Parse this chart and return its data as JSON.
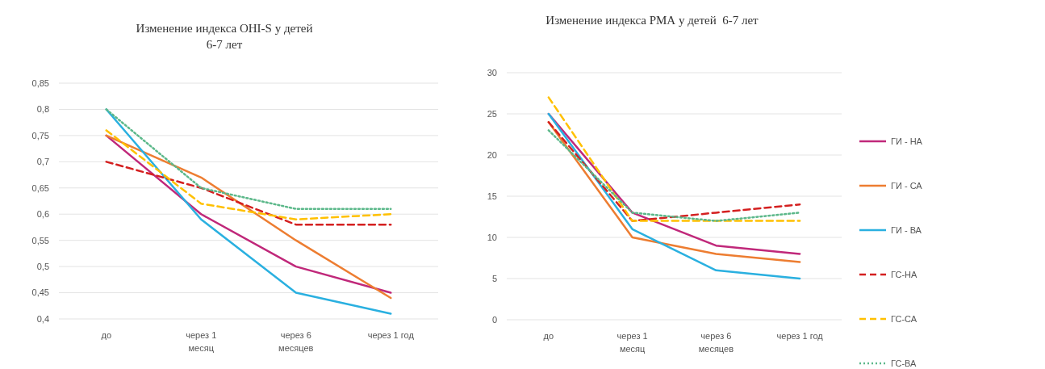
{
  "chart_data": [
    {
      "type": "line",
      "title": "Изменение индекса OHI-S у детей 6-7 лет",
      "categories": [
        "до",
        "через 1 месяц",
        "через 6 месяцев",
        "через 1 год"
      ],
      "ylim": [
        0.4,
        0.85
      ],
      "yticks": [
        {
          "value": 0.4,
          "label": "0,4"
        },
        {
          "value": 0.45,
          "label": "0,45"
        },
        {
          "value": 0.5,
          "label": "0,5"
        },
        {
          "value": 0.55,
          "label": "0,55"
        },
        {
          "value": 0.6,
          "label": "0,6"
        },
        {
          "value": 0.65,
          "label": "0,65"
        },
        {
          "value": 0.7,
          "label": "0,7"
        },
        {
          "value": 0.75,
          "label": "0,75"
        },
        {
          "value": 0.8,
          "label": "0,8"
        },
        {
          "value": 0.85,
          "label": "0,85"
        }
      ],
      "grid": "y",
      "legend": false,
      "series": [
        {
          "color": "#c0287a",
          "line_style": "solid",
          "values": [
            0.75,
            0.6,
            0.5,
            0.45
          ]
        },
        {
          "color": "#ed7d31",
          "line_style": "solid",
          "values": [
            0.75,
            0.67,
            0.55,
            0.44
          ]
        },
        {
          "color": "#2ab0e0",
          "line_style": "solid",
          "values": [
            0.8,
            0.59,
            0.45,
            0.41
          ]
        },
        {
          "color": "#d42020",
          "line_style": "dashed",
          "values": [
            0.7,
            0.65,
            0.58,
            0.58
          ]
        },
        {
          "color": "#ffc000",
          "line_style": "dashed",
          "values": [
            0.76,
            0.62,
            0.59,
            0.6
          ]
        },
        {
          "color": "#5cb88a",
          "line_style": "dotted",
          "values": [
            0.8,
            0.65,
            0.61,
            0.61
          ]
        }
      ]
    },
    {
      "type": "line",
      "title": "Изменение индекса РМА у детей  6-7 лет",
      "categories": [
        "до",
        "через 1 месяц",
        "через 6 месяцев",
        "через 1 год"
      ],
      "ylim": [
        0,
        30
      ],
      "yticks": [
        0,
        5,
        10,
        15,
        20,
        25,
        30
      ],
      "grid": "y",
      "legend": "right",
      "series": [
        {
          "name": "ГИ - НА",
          "color": "#c0287a",
          "line_style": "solid",
          "values": [
            25,
            13,
            9,
            8
          ]
        },
        {
          "name": "ГИ - СА",
          "color": "#ed7d31",
          "line_style": "solid",
          "values": [
            24,
            10,
            8,
            7
          ]
        },
        {
          "name": "ГИ - ВА",
          "color": "#2ab0e0",
          "line_style": "solid",
          "values": [
            25,
            11,
            6,
            5
          ]
        },
        {
          "name": "ГС-НА",
          "color": "#d42020",
          "line_style": "dashed",
          "values": [
            24,
            12,
            13,
            14
          ]
        },
        {
          "name": "ГС-СА",
          "color": "#ffc000",
          "line_style": "dashed",
          "values": [
            27,
            12,
            12,
            12
          ]
        },
        {
          "name": "ГС-ВА",
          "color": "#5cb88a",
          "line_style": "dotted",
          "values": [
            23,
            13,
            12,
            13
          ]
        }
      ]
    }
  ]
}
